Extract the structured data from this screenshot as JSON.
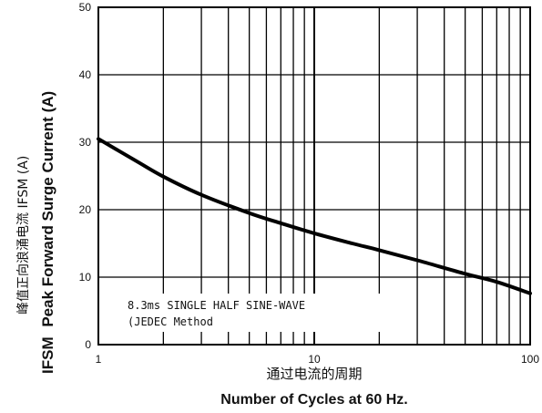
{
  "chart_data": {
    "type": "line",
    "x_scale": "log",
    "x_range": [
      1,
      100
    ],
    "y_range": [
      0,
      50
    ],
    "x_tick_labels": [
      "1",
      "10",
      "100"
    ],
    "y_tick_labels": [
      "0",
      "10",
      "20",
      "30",
      "40",
      "50"
    ],
    "grid": true,
    "xlabel_cn": "通过电流的周期",
    "xlabel_en": "Number  of  Cycles at 60 Hz.",
    "ylabel_cn": "峰值正向浪涌电流  IFSM (A)",
    "ylabel_prefix": "IFSM",
    "ylabel_en": "Peak Forward Surge Current (A)",
    "annotation_lines": [
      "8.3ms SINGLE HALF SINE-WAVE",
      "(JEDEC Method"
    ],
    "series": [
      {
        "x": [
          1,
          1.5,
          2,
          3,
          5,
          7,
          10,
          15,
          20,
          30,
          50,
          70,
          100
        ],
        "y": [
          30.5,
          27.2,
          24.9,
          22.2,
          19.5,
          18.0,
          16.5,
          15.0,
          14.0,
          12.5,
          10.5,
          9.3,
          7.6
        ]
      }
    ]
  }
}
